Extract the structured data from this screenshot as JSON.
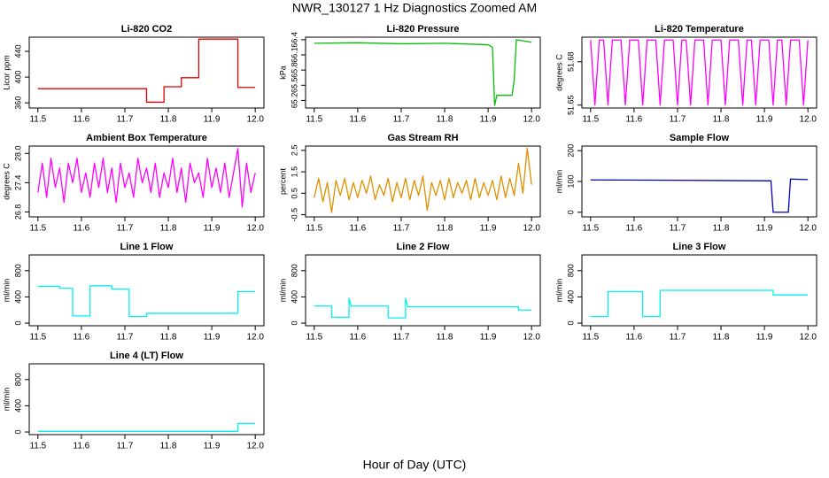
{
  "title": "NWR_130127  1 Hz Diagnostics Zoomed AM",
  "x_label": "Hour of Day (UTC)",
  "chart_data": [
    {
      "type": "line",
      "title": "Li-820 CO2",
      "y_label": "Licor ppm",
      "color": "#e00000",
      "x": [
        11.5,
        11.75,
        11.75,
        11.79,
        11.79,
        11.83,
        11.83,
        11.87,
        11.87,
        11.96,
        11.96,
        12.0
      ],
      "values": [
        382,
        382,
        361,
        361,
        385,
        385,
        399,
        399,
        459,
        459,
        384,
        384
      ],
      "xlim": [
        11.48,
        12.02
      ],
      "ylim": [
        352,
        462
      ],
      "xticks": [
        11.5,
        11.6,
        11.7,
        11.8,
        11.9,
        {
          "value": 12,
          "label": "12.0"
        }
      ],
      "yticks": [
        360,
        400,
        440
      ]
    },
    {
      "type": "line",
      "title": "Li-820 Pressure",
      "y_label": "kPa",
      "color": "#00c000",
      "x": [
        11.5,
        11.6,
        11.7,
        11.8,
        11.9,
        11.91,
        11.915,
        11.92,
        11.955,
        11.96,
        11.965,
        12.0
      ],
      "values": [
        66.33,
        66.34,
        66.32,
        66.33,
        66.3,
        66.25,
        65.1,
        65.3,
        65.3,
        65.6,
        66.4,
        66.35
      ],
      "xlim": [
        11.48,
        12.02
      ],
      "ylim": [
        65.05,
        66.45
      ],
      "xticks": [
        11.5,
        11.6,
        11.7,
        11.8,
        11.9,
        {
          "value": 12,
          "label": "12.0"
        }
      ],
      "yticks": [
        65.2,
        65.5,
        65.8,
        66.1,
        66.4
      ]
    },
    {
      "type": "line",
      "title": "Li-820 Temperature",
      "y_label": "degrees C",
      "color": "#ff00ff",
      "x": [
        11.5,
        11.51,
        11.52,
        11.53,
        11.54,
        11.55,
        11.56,
        11.57,
        11.58,
        11.59,
        11.6,
        11.61,
        11.62,
        11.63,
        11.64,
        11.65,
        11.66,
        11.67,
        11.68,
        11.69,
        11.7,
        11.71,
        11.72,
        11.73,
        11.74,
        11.75,
        11.76,
        11.77,
        11.78,
        11.79,
        11.8,
        11.81,
        11.82,
        11.83,
        11.84,
        11.85,
        11.86,
        11.87,
        11.88,
        11.89,
        11.9,
        11.91,
        11.92,
        11.93,
        11.94,
        11.95,
        11.96,
        11.97,
        11.98,
        11.99,
        12.0
      ],
      "values": [
        51.695,
        51.65,
        51.695,
        51.695,
        51.65,
        51.695,
        51.695,
        51.695,
        51.65,
        51.695,
        51.695,
        51.695,
        51.65,
        51.695,
        51.695,
        51.695,
        51.65,
        51.695,
        51.695,
        51.695,
        51.65,
        51.695,
        51.695,
        51.65,
        51.695,
        51.695,
        51.695,
        51.65,
        51.695,
        51.695,
        51.695,
        51.65,
        51.695,
        51.695,
        51.695,
        51.65,
        51.695,
        51.695,
        51.65,
        51.695,
        51.695,
        51.695,
        51.65,
        51.695,
        51.695,
        51.65,
        51.695,
        51.695,
        51.695,
        51.65,
        51.695
      ],
      "xlim": [
        11.48,
        12.02
      ],
      "ylim": [
        51.648,
        51.697
      ],
      "xticks": [
        11.5,
        11.6,
        11.7,
        11.8,
        11.9,
        {
          "value": 12,
          "label": "12.0"
        }
      ],
      "yticks": [
        51.65,
        51.68
      ]
    },
    {
      "type": "line",
      "title": "Ambient Box Temperature",
      "y_label": "degrees C",
      "color": "#ff00ff",
      "x": [
        11.5,
        11.51,
        11.52,
        11.53,
        11.54,
        11.55,
        11.56,
        11.57,
        11.58,
        11.59,
        11.6,
        11.61,
        11.62,
        11.63,
        11.64,
        11.65,
        11.66,
        11.67,
        11.68,
        11.69,
        11.7,
        11.71,
        11.72,
        11.73,
        11.74,
        11.75,
        11.76,
        11.77,
        11.78,
        11.79,
        11.8,
        11.81,
        11.82,
        11.83,
        11.84,
        11.85,
        11.86,
        11.87,
        11.88,
        11.89,
        11.9,
        11.91,
        11.92,
        11.93,
        11.94,
        11.95,
        11.96,
        11.97,
        11.98,
        11.99,
        12.0
      ],
      "values": [
        27.2,
        27.8,
        27.1,
        27.9,
        27.3,
        27.7,
        27.0,
        27.8,
        27.4,
        27.9,
        27.2,
        27.6,
        27.1,
        27.8,
        27.3,
        27.9,
        27.2,
        27.7,
        27.0,
        27.8,
        27.3,
        27.6,
        27.1,
        27.9,
        27.4,
        27.7,
        27.2,
        27.8,
        27.1,
        27.6,
        27.3,
        27.9,
        27.2,
        27.7,
        27.0,
        27.8,
        27.4,
        27.6,
        27.1,
        27.9,
        27.3,
        27.7,
        27.2,
        27.8,
        27.1,
        27.6,
        28.1,
        26.9,
        27.8,
        27.2,
        27.6
      ],
      "xlim": [
        11.48,
        12.02
      ],
      "ylim": [
        26.7,
        28.15
      ],
      "xticks": [
        11.5,
        11.6,
        11.7,
        11.8,
        11.9,
        {
          "value": 12,
          "label": "12.0"
        }
      ],
      "yticks": [
        26.8,
        27.4,
        {
          "value": 28,
          "label": "28.0"
        }
      ]
    },
    {
      "type": "line",
      "title": "Gas Stream RH",
      "y_label": "percent",
      "color": "#e09000",
      "x": [
        11.5,
        11.51,
        11.52,
        11.53,
        11.54,
        11.55,
        11.56,
        11.57,
        11.58,
        11.59,
        11.6,
        11.61,
        11.62,
        11.63,
        11.64,
        11.65,
        11.66,
        11.67,
        11.68,
        11.69,
        11.7,
        11.71,
        11.72,
        11.73,
        11.74,
        11.75,
        11.76,
        11.77,
        11.78,
        11.79,
        11.8,
        11.81,
        11.82,
        11.83,
        11.84,
        11.85,
        11.86,
        11.87,
        11.88,
        11.89,
        11.9,
        11.91,
        11.92,
        11.93,
        11.94,
        11.95,
        11.96,
        11.97,
        11.98,
        11.99,
        12.0
      ],
      "values": [
        0.3,
        1.2,
        0.1,
        1.0,
        -0.4,
        1.1,
        0.4,
        1.2,
        0.2,
        1.0,
        0.3,
        1.1,
        0.5,
        1.3,
        0.2,
        0.9,
        0.4,
        1.2,
        0.1,
        1.0,
        0.3,
        1.2,
        0.2,
        1.1,
        0.4,
        1.3,
        -0.3,
        1.0,
        0.4,
        1.1,
        0.2,
        1.2,
        0.3,
        1.0,
        0.5,
        1.1,
        0.2,
        1.2,
        0.3,
        1.0,
        0.4,
        1.1,
        0.2,
        1.3,
        0.3,
        1.2,
        0.4,
        1.9,
        0.5,
        2.6,
        0.9
      ],
      "xlim": [
        11.48,
        12.02
      ],
      "ylim": [
        -0.6,
        2.7
      ],
      "xticks": [
        11.5,
        11.6,
        11.7,
        11.8,
        11.9,
        {
          "value": 12,
          "label": "12.0"
        }
      ],
      "yticks": [
        -0.5,
        0.5,
        1.5,
        2.5
      ]
    },
    {
      "type": "line",
      "title": "Sample Flow",
      "y_label": "ml/min",
      "color": "#0000c0",
      "x": [
        11.5,
        11.7,
        11.8,
        11.915,
        11.92,
        11.955,
        11.96,
        12.0
      ],
      "values": [
        105,
        104,
        103,
        102,
        0,
        0,
        108,
        106
      ],
      "xlim": [
        11.48,
        12.02
      ],
      "ylim": [
        -15,
        215
      ],
      "xticks": [
        11.5,
        11.6,
        11.7,
        11.8,
        11.9,
        {
          "value": 12,
          "label": "12.0"
        }
      ],
      "yticks": [
        0,
        100,
        200
      ]
    },
    {
      "type": "line",
      "title": "Line 1 Flow",
      "y_label": "ml/min",
      "color": "#00f0f0",
      "x": [
        11.5,
        11.55,
        11.55,
        11.58,
        11.58,
        11.62,
        11.62,
        11.67,
        11.67,
        11.71,
        11.71,
        11.75,
        11.75,
        11.96,
        11.96,
        12.0
      ],
      "values": [
        560,
        560,
        530,
        530,
        110,
        110,
        570,
        570,
        520,
        520,
        100,
        100,
        150,
        150,
        480,
        480
      ],
      "xlim": [
        11.48,
        12.02
      ],
      "ylim": [
        -40,
        1040
      ],
      "xticks": [
        11.5,
        11.6,
        11.7,
        11.8,
        11.9,
        {
          "value": 12,
          "label": "12.0"
        }
      ],
      "yticks": [
        0,
        400,
        800
      ]
    },
    {
      "type": "line",
      "title": "Line 2 Flow",
      "y_label": "ml/min",
      "color": "#00f0f0",
      "x": [
        11.5,
        11.54,
        11.54,
        11.58,
        11.58,
        11.585,
        11.67,
        11.67,
        11.71,
        11.71,
        11.715,
        11.97,
        11.97,
        12.0
      ],
      "values": [
        260,
        260,
        90,
        90,
        380,
        260,
        260,
        80,
        80,
        380,
        250,
        250,
        200,
        200
      ],
      "xlim": [
        11.48,
        12.02
      ],
      "ylim": [
        -40,
        1040
      ],
      "xticks": [
        11.5,
        11.6,
        11.7,
        11.8,
        11.9,
        {
          "value": 12,
          "label": "12.0"
        }
      ],
      "yticks": [
        0,
        400,
        800
      ]
    },
    {
      "type": "line",
      "title": "Line 3 Flow",
      "y_label": "ml/min",
      "color": "#00f0f0",
      "x": [
        11.5,
        11.54,
        11.54,
        11.62,
        11.62,
        11.66,
        11.66,
        11.92,
        11.92,
        12.0
      ],
      "values": [
        100,
        100,
        480,
        480,
        100,
        100,
        500,
        500,
        430,
        430
      ],
      "xlim": [
        11.48,
        12.02
      ],
      "ylim": [
        -40,
        1040
      ],
      "xticks": [
        11.5,
        11.6,
        11.7,
        11.8,
        11.9,
        {
          "value": 12,
          "label": "12.0"
        }
      ],
      "yticks": [
        0,
        400,
        800
      ]
    },
    {
      "type": "line",
      "title": "Line 4 (LT) Flow",
      "y_label": "ml/min",
      "color": "#00f0f0",
      "x": [
        11.5,
        11.96,
        11.96,
        12.0
      ],
      "values": [
        10,
        10,
        130,
        130
      ],
      "xlim": [
        11.48,
        12.02
      ],
      "ylim": [
        -40,
        1040
      ],
      "xticks": [
        11.5,
        11.6,
        11.7,
        11.8,
        11.9,
        {
          "value": 12,
          "label": "12.0"
        }
      ],
      "yticks": [
        0,
        400,
        800
      ]
    }
  ]
}
